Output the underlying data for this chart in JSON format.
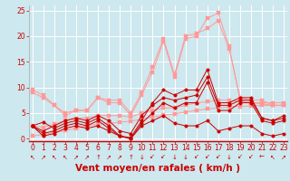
{
  "bg_color": "#cde8ee",
  "grid_color": "#ffffff",
  "line_color_dark": "#cc0000",
  "line_color_light": "#ff9999",
  "xlabel": "Vent moyen/en rafales ( km/h )",
  "xlabel_color": "#cc0000",
  "x": [
    0,
    1,
    2,
    3,
    4,
    5,
    6,
    7,
    8,
    9,
    10,
    11,
    12,
    13,
    14,
    15,
    16,
    17,
    18,
    19,
    20,
    21,
    22,
    23
  ],
  "ylim": [
    -0.5,
    26
  ],
  "xlim": [
    -0.3,
    23.3
  ],
  "series_dark": [
    [
      2.5,
      3.2,
      2.0,
      3.0,
      3.5,
      3.0,
      4.0,
      2.5,
      0.5,
      0.2,
      3.5,
      7.0,
      9.5,
      8.5,
      9.5,
      9.5,
      13.5,
      7.0,
      7.0,
      8.0,
      8.0,
      4.0,
      3.5,
      4.0
    ],
    [
      2.5,
      0.5,
      1.0,
      2.0,
      2.5,
      2.0,
      2.5,
      1.5,
      0.5,
      0.0,
      2.5,
      3.5,
      4.5,
      3.0,
      2.5,
      2.5,
      3.5,
      1.5,
      2.0,
      2.5,
      2.5,
      1.0,
      0.5,
      1.0
    ],
    [
      2.5,
      1.0,
      1.5,
      2.5,
      3.0,
      2.5,
      3.5,
      2.0,
      0.5,
      0.0,
      3.0,
      5.0,
      7.0,
      6.0,
      7.0,
      7.0,
      11.0,
      5.5,
      5.5,
      7.0,
      7.0,
      3.5,
      3.0,
      3.5
    ],
    [
      2.5,
      1.5,
      2.5,
      3.5,
      4.0,
      3.5,
      4.5,
      3.5,
      1.5,
      1.0,
      4.5,
      6.5,
      8.0,
      7.5,
      8.0,
      8.5,
      12.0,
      6.5,
      6.5,
      7.5,
      7.5,
      4.0,
      3.5,
      4.5
    ]
  ],
  "series_light": [
    [
      9.5,
      8.5,
      6.5,
      4.5,
      5.5,
      5.5,
      8.0,
      7.0,
      7.0,
      4.5,
      8.5,
      13.0,
      19.0,
      12.0,
      19.5,
      20.0,
      23.5,
      24.5,
      18.0,
      7.5,
      7.0,
      7.0,
      7.0,
      7.0
    ],
    [
      9.0,
      8.0,
      6.5,
      5.0,
      5.5,
      5.5,
      8.0,
      7.5,
      7.5,
      5.0,
      9.0,
      14.0,
      19.5,
      12.5,
      20.0,
      20.5,
      21.5,
      23.0,
      17.5,
      8.0,
      7.5,
      7.5,
      6.5,
      6.5
    ],
    [
      0.5,
      0.8,
      1.2,
      1.6,
      2.0,
      2.5,
      2.8,
      3.0,
      3.2,
      3.4,
      3.8,
      4.2,
      4.6,
      4.8,
      5.2,
      5.5,
      5.8,
      6.0,
      6.2,
      6.3,
      6.4,
      6.5,
      6.5,
      6.5
    ],
    [
      2.5,
      2.2,
      2.8,
      3.5,
      4.0,
      4.0,
      4.5,
      4.5,
      4.5,
      4.2,
      5.0,
      5.5,
      6.0,
      6.0,
      6.5,
      7.0,
      7.2,
      7.5,
      7.5,
      7.2,
      7.0,
      6.8,
      6.5,
      6.5
    ]
  ],
  "marker_size": 2.5,
  "tick_fontsize": 5.5,
  "xlabel_fontsize": 7.5,
  "wind_arrows": [
    "↖",
    "↗",
    "↖",
    "↖",
    "↗",
    "↗",
    "↑",
    "↗",
    "↗",
    "↑",
    "↓",
    "↙",
    "↙",
    "↓",
    "↓",
    "↙",
    "↙",
    "↙",
    "↓",
    "↙",
    "↙",
    "←",
    "↖",
    "↗"
  ]
}
